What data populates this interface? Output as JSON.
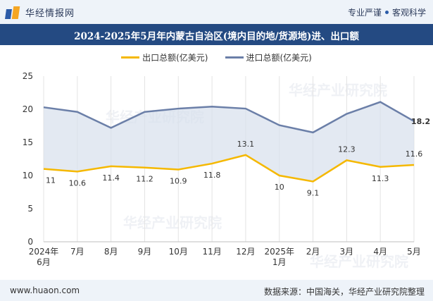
{
  "header": {
    "logo_text": "华经情报网",
    "slogan_left": "专业严谨",
    "slogan_right": "客观科学"
  },
  "title": "2024-2025年5月年内蒙古自治区(境内目的地/货源地)进、出口额",
  "watermark_text": "华经产业研究院",
  "watermark_url": "www.huaon.com",
  "footer": {
    "website": "www.huaon.com",
    "source": "数据来源：中国海关，华经产业研究院整理"
  },
  "colors": {
    "export": "#f5b800",
    "import": "#6b7fa8",
    "band": "#d7dfec",
    "title_bg": "#244a82"
  },
  "chart_data": {
    "type": "line",
    "categories": [
      "2024年\n6月",
      "7月",
      "8月",
      "9月",
      "10月",
      "11月",
      "12月",
      "2025年\n1月",
      "2月",
      "3月",
      "4月",
      "5月"
    ],
    "series": [
      {
        "name": "出口总额(亿美元)",
        "values": [
          11,
          10.6,
          11.4,
          11.2,
          10.9,
          11.8,
          13.1,
          10,
          9.1,
          12.3,
          11.3,
          11.6
        ]
      },
      {
        "name": "进口总额(亿美元)",
        "values": [
          20.3,
          19.6,
          17.2,
          19.6,
          20.1,
          20.4,
          20.1,
          17.6,
          16.5,
          19.3,
          21.1,
          18.2
        ]
      }
    ],
    "labels_shown": {
      "export": "all",
      "import": "last"
    },
    "ylim": [
      0,
      25
    ],
    "yticks": [
      0,
      5,
      10,
      15,
      20,
      25
    ],
    "grid": "vertical",
    "legend_position": "top-center"
  }
}
